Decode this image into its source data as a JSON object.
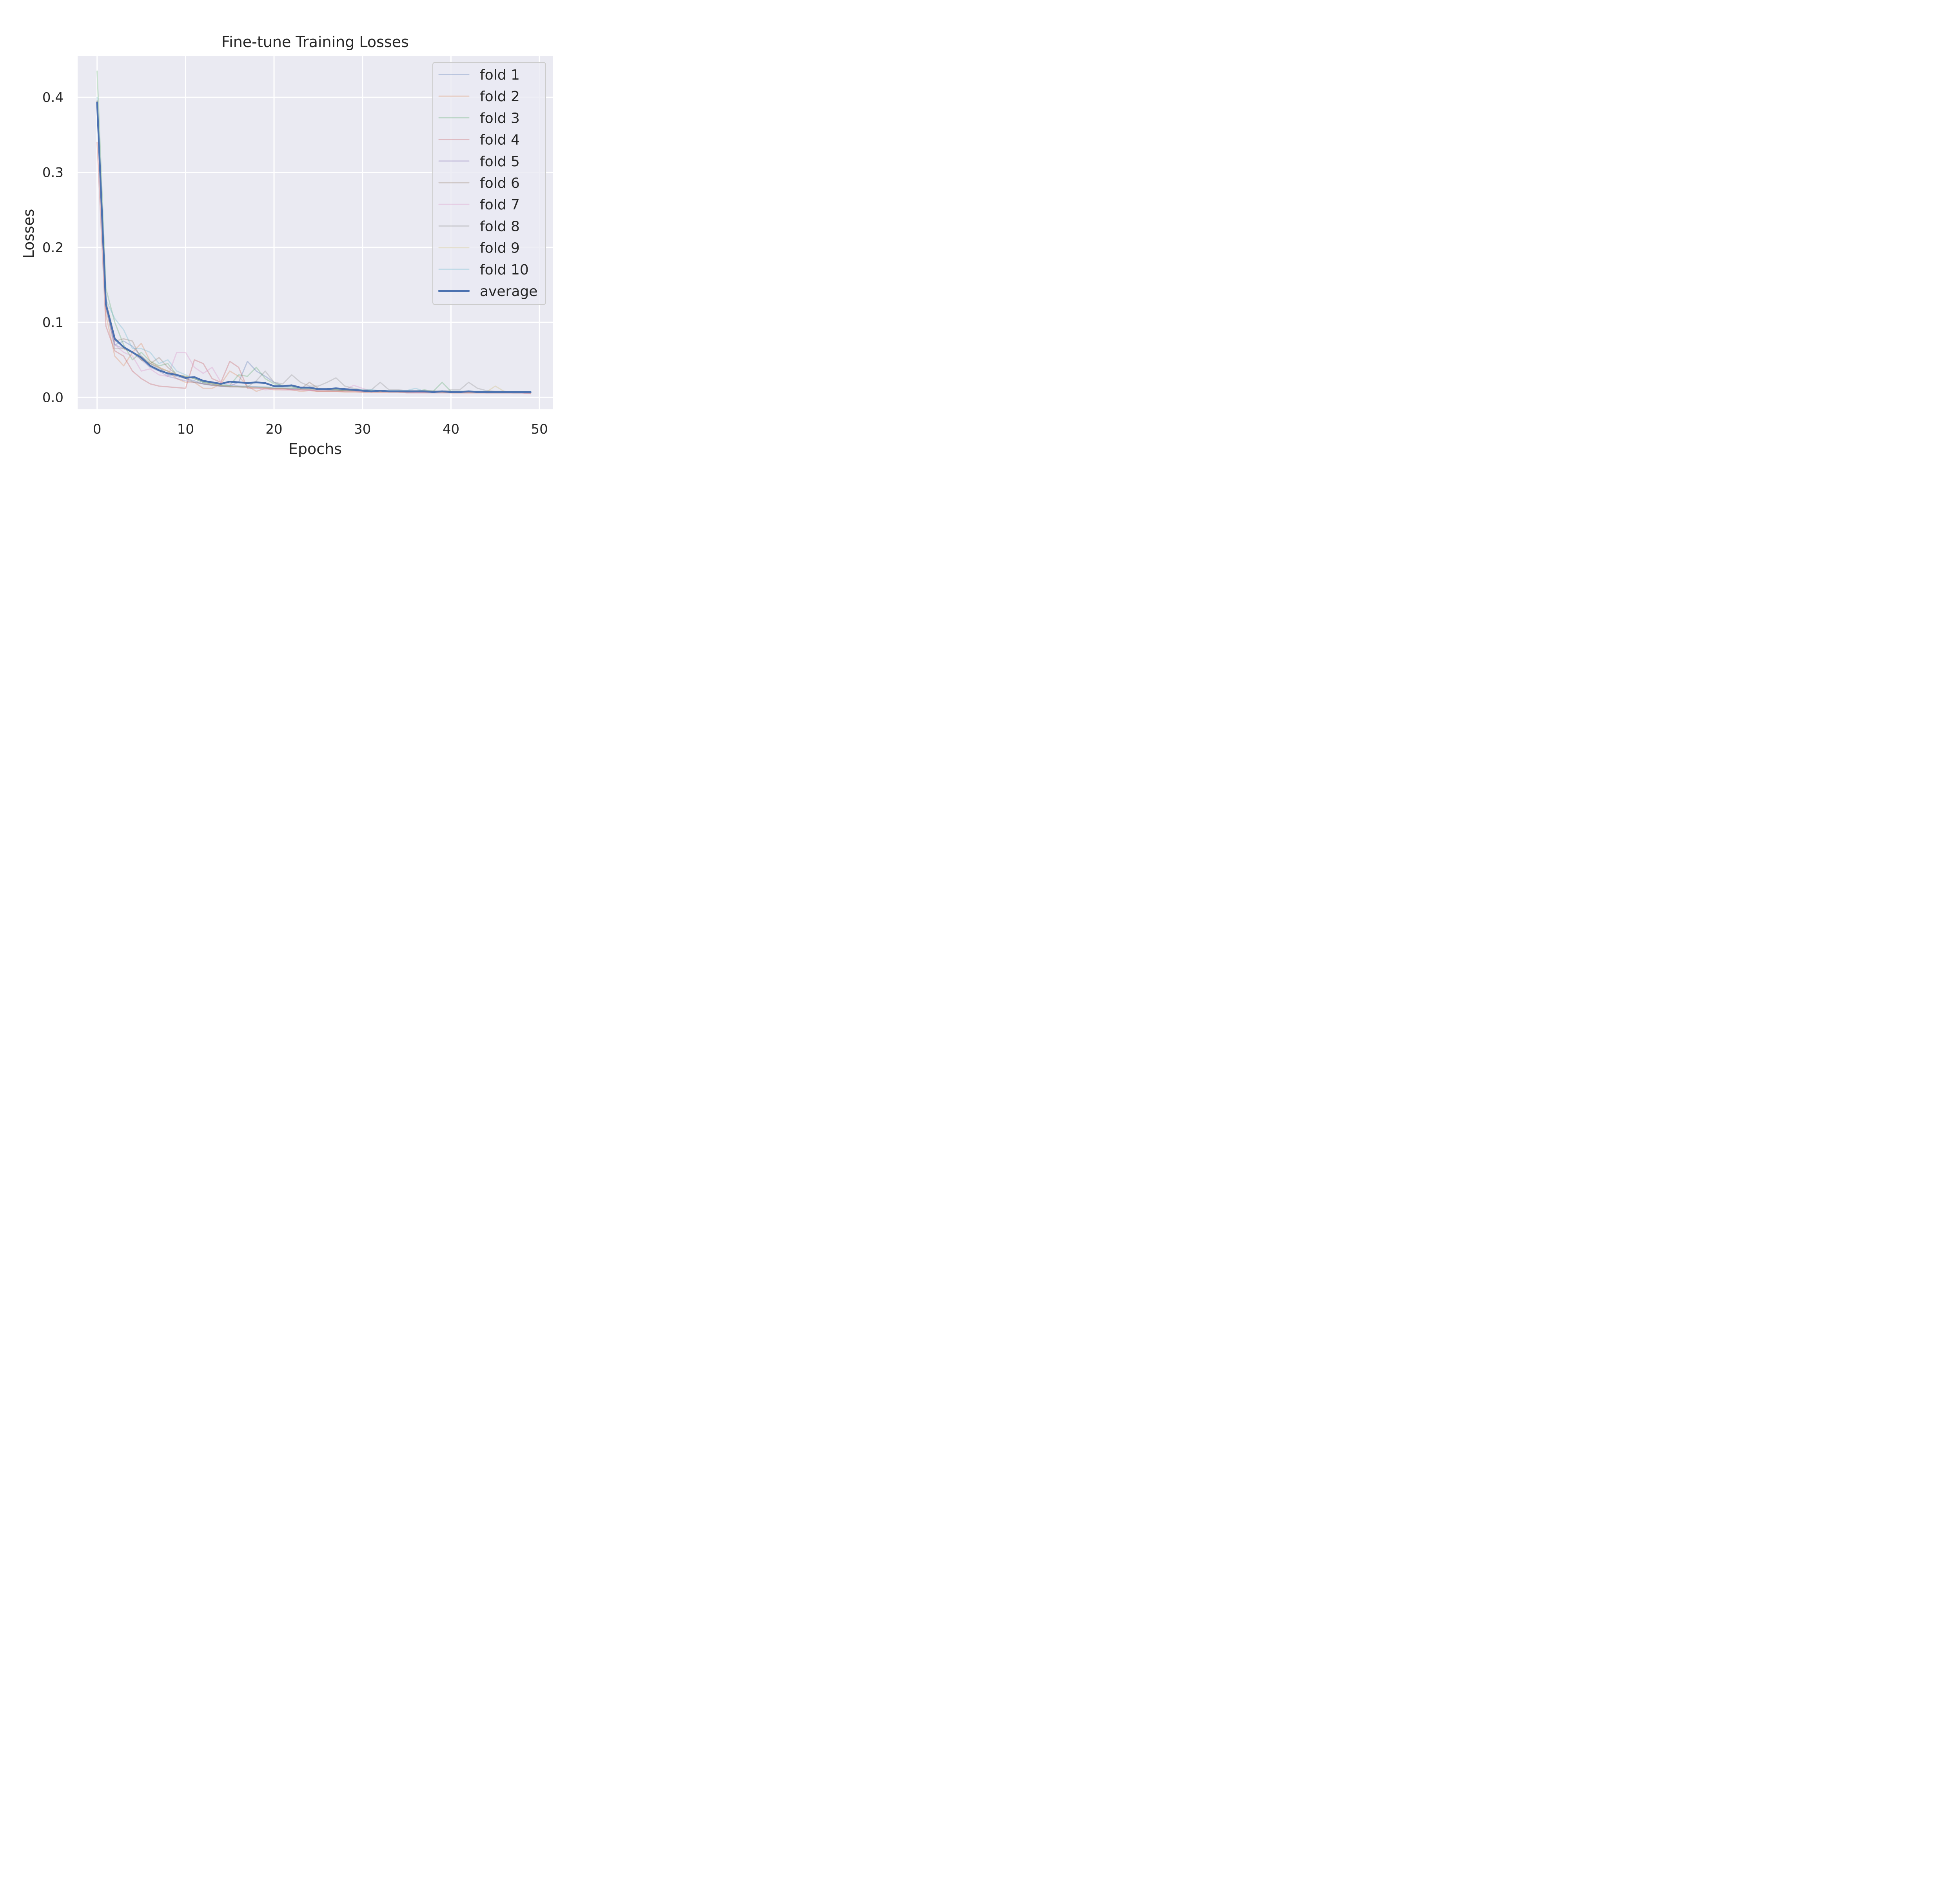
{
  "chart_data": {
    "type": "line",
    "title": "Fine-tune Training Losses",
    "xlabel": "Epochs",
    "ylabel": "Losses",
    "xlim": [
      -2.2,
      51.5
    ],
    "ylim": [
      -0.016,
      0.455
    ],
    "xticks": [
      0,
      10,
      20,
      30,
      40,
      50
    ],
    "xtick_labels": [
      "0",
      "10",
      "20",
      "30",
      "40",
      "50"
    ],
    "yticks": [
      0.0,
      0.1,
      0.2,
      0.3,
      0.4
    ],
    "ytick_labels": [
      "0.0",
      "0.1",
      "0.2",
      "0.3",
      "0.4"
    ],
    "grid": true,
    "legend_position": "top-right",
    "x": [
      0,
      1,
      2,
      3,
      4,
      5,
      6,
      7,
      8,
      9,
      10,
      11,
      12,
      13,
      14,
      15,
      16,
      17,
      18,
      19,
      20,
      21,
      22,
      23,
      24,
      25,
      26,
      27,
      28,
      29,
      30,
      31,
      32,
      33,
      34,
      35,
      36,
      37,
      38,
      39,
      40,
      41,
      42,
      43,
      44,
      45,
      46,
      47,
      48,
      49
    ],
    "series": [
      {
        "name": "fold 1",
        "color": "#4c72b0",
        "alpha": 0.3,
        "width": 3,
        "values": [
          0.395,
          0.125,
          0.07,
          0.075,
          0.068,
          0.055,
          0.045,
          0.04,
          0.03,
          0.028,
          0.025,
          0.022,
          0.018,
          0.017,
          0.015,
          0.015,
          0.02,
          0.048,
          0.035,
          0.028,
          0.02,
          0.015,
          0.014,
          0.013,
          0.012,
          0.011,
          0.01,
          0.01,
          0.009,
          0.009,
          0.009,
          0.008,
          0.008,
          0.008,
          0.008,
          0.007,
          0.007,
          0.007,
          0.007,
          0.007,
          0.007,
          0.007,
          0.007,
          0.007,
          0.007,
          0.007,
          0.007,
          0.006,
          0.006,
          0.006
        ]
      },
      {
        "name": "fold 2",
        "color": "#dd8452",
        "alpha": 0.3,
        "width": 3,
        "values": [
          0.395,
          0.11,
          0.055,
          0.042,
          0.06,
          0.072,
          0.048,
          0.04,
          0.035,
          0.025,
          0.02,
          0.02,
          0.012,
          0.012,
          0.018,
          0.035,
          0.028,
          0.015,
          0.008,
          0.012,
          0.01,
          0.01,
          0.01,
          0.008,
          0.009,
          0.008,
          0.008,
          0.008,
          0.007,
          0.007,
          0.007,
          0.007,
          0.007,
          0.007,
          0.007,
          0.007,
          0.007,
          0.007,
          0.007,
          0.007,
          0.006,
          0.006,
          0.006,
          0.006,
          0.006,
          0.006,
          0.006,
          0.006,
          0.006,
          0.006
        ]
      },
      {
        "name": "fold 3",
        "color": "#55a868",
        "alpha": 0.3,
        "width": 3,
        "values": [
          0.435,
          0.145,
          0.1,
          0.07,
          0.05,
          0.06,
          0.048,
          0.042,
          0.045,
          0.03,
          0.028,
          0.025,
          0.02,
          0.018,
          0.016,
          0.016,
          0.03,
          0.028,
          0.04,
          0.025,
          0.018,
          0.016,
          0.014,
          0.012,
          0.012,
          0.01,
          0.01,
          0.01,
          0.009,
          0.009,
          0.009,
          0.009,
          0.008,
          0.008,
          0.008,
          0.008,
          0.008,
          0.01,
          0.008,
          0.02,
          0.008,
          0.008,
          0.008,
          0.007,
          0.007,
          0.007,
          0.007,
          0.007,
          0.007,
          0.007
        ]
      },
      {
        "name": "fold 4",
        "color": "#c44e52",
        "alpha": 0.3,
        "width": 3,
        "values": [
          0.34,
          0.095,
          0.062,
          0.055,
          0.035,
          0.025,
          0.018,
          0.015,
          0.014,
          0.013,
          0.012,
          0.05,
          0.045,
          0.025,
          0.02,
          0.048,
          0.04,
          0.012,
          0.012,
          0.012,
          0.012,
          0.012,
          0.01,
          0.01,
          0.01,
          0.008,
          0.008,
          0.008,
          0.008,
          0.008,
          0.007,
          0.007,
          0.007,
          0.007,
          0.007,
          0.006,
          0.006,
          0.006,
          0.006,
          0.006,
          0.006,
          0.006,
          0.006,
          0.006,
          0.006,
          0.006,
          0.006,
          0.006,
          0.006,
          0.005
        ]
      },
      {
        "name": "fold 5",
        "color": "#8172b3",
        "alpha": 0.3,
        "width": 3,
        "values": [
          0.39,
          0.12,
          0.07,
          0.065,
          0.06,
          0.05,
          0.04,
          0.035,
          0.028,
          0.025,
          0.022,
          0.02,
          0.018,
          0.016,
          0.015,
          0.014,
          0.014,
          0.014,
          0.014,
          0.013,
          0.012,
          0.012,
          0.011,
          0.011,
          0.01,
          0.01,
          0.01,
          0.009,
          0.009,
          0.009,
          0.008,
          0.008,
          0.008,
          0.008,
          0.008,
          0.007,
          0.007,
          0.007,
          0.007,
          0.007,
          0.007,
          0.007,
          0.007,
          0.007,
          0.006,
          0.006,
          0.006,
          0.006,
          0.006,
          0.006
        ]
      },
      {
        "name": "fold 6",
        "color": "#937860",
        "alpha": 0.3,
        "width": 3,
        "values": [
          0.395,
          0.125,
          0.075,
          0.078,
          0.075,
          0.05,
          0.045,
          0.053,
          0.04,
          0.03,
          0.025,
          0.02,
          0.018,
          0.016,
          0.015,
          0.014,
          0.014,
          0.013,
          0.013,
          0.013,
          0.012,
          0.012,
          0.012,
          0.011,
          0.02,
          0.012,
          0.01,
          0.01,
          0.009,
          0.009,
          0.009,
          0.008,
          0.008,
          0.008,
          0.008,
          0.008,
          0.008,
          0.007,
          0.007,
          0.007,
          0.007,
          0.007,
          0.007,
          0.007,
          0.007,
          0.007,
          0.007,
          0.007,
          0.007,
          0.006
        ]
      },
      {
        "name": "fold 7",
        "color": "#da8bc3",
        "alpha": 0.3,
        "width": 3,
        "values": [
          0.39,
          0.12,
          0.07,
          0.06,
          0.055,
          0.035,
          0.038,
          0.03,
          0.028,
          0.06,
          0.06,
          0.04,
          0.032,
          0.04,
          0.02,
          0.018,
          0.015,
          0.014,
          0.013,
          0.01,
          0.011,
          0.01,
          0.01,
          0.01,
          0.009,
          0.009,
          0.009,
          0.012,
          0.01,
          0.016,
          0.012,
          0.008,
          0.008,
          0.008,
          0.008,
          0.008,
          0.007,
          0.007,
          0.007,
          0.007,
          0.007,
          0.007,
          0.007,
          0.007,
          0.007,
          0.007,
          0.007,
          0.007,
          0.006,
          0.006
        ]
      },
      {
        "name": "fold 8",
        "color": "#8c8c8c",
        "alpha": 0.3,
        "width": 3,
        "values": [
          0.39,
          0.12,
          0.065,
          0.065,
          0.06,
          0.05,
          0.045,
          0.038,
          0.035,
          0.03,
          0.028,
          0.025,
          0.02,
          0.018,
          0.016,
          0.015,
          0.014,
          0.014,
          0.022,
          0.035,
          0.02,
          0.018,
          0.03,
          0.02,
          0.015,
          0.015,
          0.02,
          0.026,
          0.015,
          0.012,
          0.01,
          0.01,
          0.02,
          0.01,
          0.01,
          0.009,
          0.009,
          0.009,
          0.009,
          0.008,
          0.01,
          0.01,
          0.02,
          0.012,
          0.009,
          0.008,
          0.008,
          0.007,
          0.007,
          0.007
        ]
      },
      {
        "name": "fold 9",
        "color": "#ccb974",
        "alpha": 0.3,
        "width": 3,
        "values": [
          0.39,
          0.13,
          0.08,
          0.065,
          0.06,
          0.055,
          0.045,
          0.04,
          0.035,
          0.03,
          0.028,
          0.025,
          0.02,
          0.018,
          0.016,
          0.015,
          0.014,
          0.014,
          0.013,
          0.013,
          0.012,
          0.012,
          0.012,
          0.011,
          0.011,
          0.01,
          0.01,
          0.01,
          0.009,
          0.009,
          0.009,
          0.009,
          0.008,
          0.008,
          0.008,
          0.008,
          0.008,
          0.008,
          0.007,
          0.007,
          0.007,
          0.007,
          0.007,
          0.007,
          0.007,
          0.015,
          0.008,
          0.007,
          0.007,
          0.007
        ]
      },
      {
        "name": "fold 10",
        "color": "#64b5cd",
        "alpha": 0.3,
        "width": 3,
        "values": [
          0.4,
          0.13,
          0.105,
          0.09,
          0.065,
          0.065,
          0.06,
          0.045,
          0.05,
          0.035,
          0.03,
          0.025,
          0.02,
          0.02,
          0.018,
          0.016,
          0.015,
          0.015,
          0.014,
          0.014,
          0.013,
          0.013,
          0.012,
          0.012,
          0.012,
          0.011,
          0.011,
          0.011,
          0.01,
          0.01,
          0.01,
          0.01,
          0.009,
          0.009,
          0.009,
          0.009,
          0.012,
          0.008,
          0.008,
          0.008,
          0.008,
          0.008,
          0.008,
          0.008,
          0.008,
          0.007,
          0.007,
          0.007,
          0.007,
          0.007
        ]
      },
      {
        "name": "average",
        "color": "#4c72b0",
        "alpha": 1.0,
        "width": 4.5,
        "values": [
          0.393,
          0.124,
          0.078,
          0.067,
          0.06,
          0.053,
          0.042,
          0.036,
          0.032,
          0.03,
          0.026,
          0.027,
          0.022,
          0.02,
          0.018,
          0.021,
          0.02,
          0.019,
          0.02,
          0.019,
          0.015,
          0.015,
          0.016,
          0.013,
          0.013,
          0.011,
          0.011,
          0.012,
          0.011,
          0.01,
          0.009,
          0.008,
          0.009,
          0.008,
          0.008,
          0.008,
          0.008,
          0.008,
          0.007,
          0.008,
          0.007,
          0.007,
          0.008,
          0.007,
          0.007,
          0.007,
          0.007,
          0.007,
          0.007,
          0.007
        ]
      }
    ]
  }
}
